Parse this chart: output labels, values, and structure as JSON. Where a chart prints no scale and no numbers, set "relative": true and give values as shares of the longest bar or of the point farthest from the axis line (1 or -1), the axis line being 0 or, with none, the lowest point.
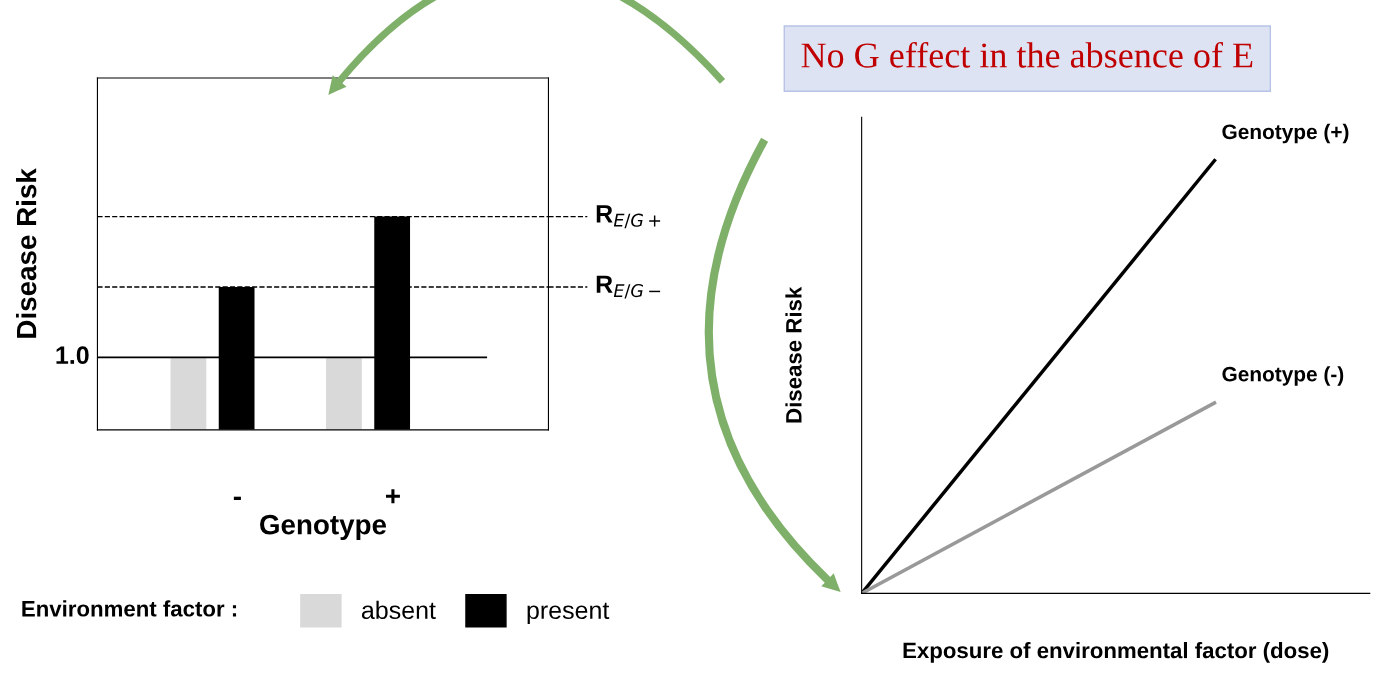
{
  "chart_data": [
    {
      "type": "bar",
      "relative": true,
      "categories": [
        "-",
        "+"
      ],
      "xlabel": "Genotype",
      "ylabel": "Disease Risk",
      "legend": "bottom",
      "legend_title": "Environment factor :",
      "series": [
        {
          "name": "absent",
          "color": "#d9d9d9",
          "values": [
            0.34,
            0.34
          ]
        },
        {
          "name": "present",
          "color": "#000000",
          "values": [
            0.67,
            1
          ]
        }
      ],
      "annotations": [
        "1.0"
      ],
      "ref_lines": [
        {
          "axis": "y",
          "value": 0.34,
          "line_style": "solid"
        },
        {
          "axis": "y",
          "value": 0.67,
          "label": "R$_{E/G−}$",
          "line_style": "dashed"
        },
        {
          "axis": "y",
          "value": 1,
          "label": "R$_{E/G+}$",
          "line_style": "dashed"
        }
      ]
    },
    {
      "type": "line",
      "relative": true,
      "categories": [
        null,
        null
      ],
      "xlabel": "Exposure of environmental factor (dose)",
      "ylabel": "Disease Risk",
      "annotations": [
        "No G effect in the absence of E"
      ],
      "series": [
        {
          "name": "Genotype (+)",
          "color": "#000000",
          "values": [
            0,
            1
          ]
        },
        {
          "name": "Genotype (-)",
          "color": "#999999",
          "values": [
            0,
            0.44
          ]
        }
      ]
    }
  ]
}
